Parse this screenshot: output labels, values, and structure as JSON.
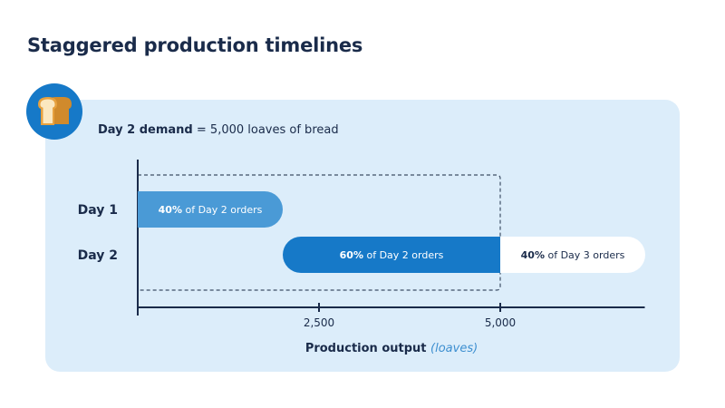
{
  "title": "Staggered production timelines",
  "icon": "bread-icon",
  "demand": {
    "label": "Day 2 demand",
    "separator": " = ",
    "value": "5,000 loaves of bread"
  },
  "colors": {
    "day1_bar": "#4a9ad6",
    "day2_bar": "#1679c8",
    "day3_bar": "#ffffff",
    "panel": "#dcedfa",
    "text": "#1a2b4a",
    "axis_title_note": "#3d8fd0"
  },
  "chart_data": {
    "type": "bar",
    "orientation": "horizontal-range",
    "categories": [
      "Day 1",
      "Day 2"
    ],
    "segments": [
      {
        "category": "Day 1",
        "start": 0,
        "end": 2000,
        "pct": "40%",
        "text": " of Day 2 orders",
        "color": "#4a9ad6",
        "text_color": "#ffffff"
      },
      {
        "category": "Day 2",
        "start": 2000,
        "end": 5000,
        "pct": "60%",
        "text": " of Day 2 orders",
        "color": "#1679c8",
        "text_color": "#ffffff"
      },
      {
        "category": "Day 2",
        "start": 5000,
        "end": 7000,
        "pct": "40%",
        "text": " of Day 3 orders",
        "color": "#ffffff",
        "text_color": "#1a2b4a"
      }
    ],
    "xticks": [
      2500,
      5000
    ],
    "xtick_labels": [
      "2,500",
      "5,000"
    ],
    "xlim": [
      0,
      7000
    ],
    "xlabel": "Production output",
    "xlabel_note": "(loaves)",
    "highlight_range": [
      0,
      5000
    ],
    "grid": false,
    "legend": "none"
  }
}
